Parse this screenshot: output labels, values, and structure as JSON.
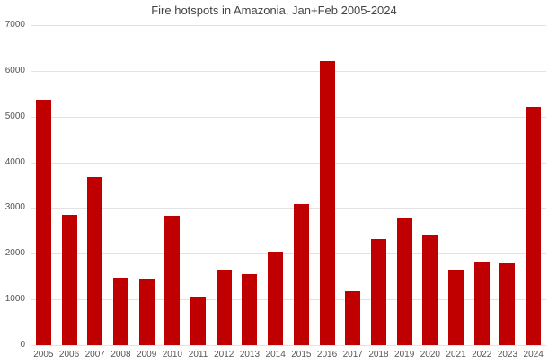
{
  "chart_data": {
    "type": "bar",
    "title": "Fire hotspots in Amazonia, Jan+Feb 2005-2024",
    "xlabel": "",
    "ylabel": "",
    "ylim": [
      0,
      7000
    ],
    "yticks": [
      0,
      1000,
      2000,
      3000,
      4000,
      5000,
      6000,
      7000
    ],
    "grid": true,
    "legend": "none",
    "bar_color": "#c00000",
    "categories": [
      "2005",
      "2006",
      "2007",
      "2008",
      "2009",
      "2010",
      "2011",
      "2012",
      "2013",
      "2014",
      "2015",
      "2016",
      "2017",
      "2018",
      "2019",
      "2020",
      "2021",
      "2022",
      "2023",
      "2024"
    ],
    "values": [
      5370,
      2850,
      3680,
      1470,
      1450,
      2840,
      1050,
      1650,
      1560,
      2050,
      3090,
      6215,
      1180,
      2330,
      2790,
      2395,
      1655,
      1815,
      1785,
      5210
    ]
  }
}
